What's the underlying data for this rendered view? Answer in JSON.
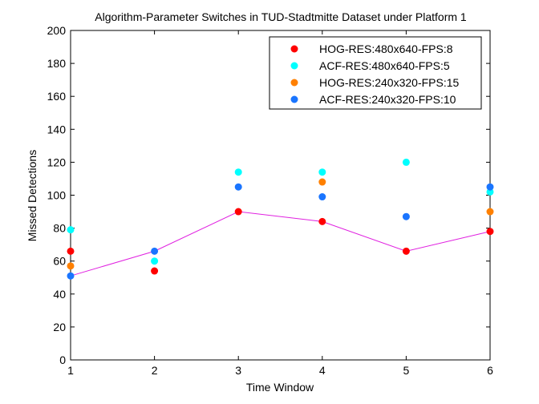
{
  "chart_data": {
    "type": "scatter",
    "title": "Algorithm-Parameter Switches in TUD-Stadtmitte Dataset under Platform 1",
    "xlabel": "Time Window",
    "ylabel": "Missed Detections",
    "xlim": [
      1,
      6
    ],
    "ylim": [
      0,
      200
    ],
    "xticks": [
      1,
      2,
      3,
      4,
      5,
      6
    ],
    "yticks": [
      0,
      20,
      40,
      60,
      80,
      100,
      120,
      140,
      160,
      180,
      200
    ],
    "grid": false,
    "legend_position": "top-right",
    "series": [
      {
        "name": "HOG-RES:480x640-FPS:8",
        "color": "#ff0000",
        "x": [
          1,
          2,
          3,
          4,
          5,
          6
        ],
        "y": [
          66,
          54,
          90,
          84,
          66,
          78
        ]
      },
      {
        "name": "ACF-RES:480x640-FPS:5",
        "color": "#00ffff",
        "x": [
          1,
          2,
          3,
          4,
          5,
          6
        ],
        "y": [
          79,
          60,
          114,
          114,
          120,
          102
        ]
      },
      {
        "name": "HOG-RES:240x320-FPS:15",
        "color": "#ff8000",
        "x": [
          1,
          4,
          6
        ],
        "y": [
          57,
          108,
          90
        ]
      },
      {
        "name": "ACF-RES:240x320-FPS:10",
        "color": "#1a75ff",
        "x": [
          1,
          2,
          3,
          4,
          5,
          6
        ],
        "y": [
          51,
          66,
          105,
          99,
          87,
          105
        ]
      }
    ],
    "switch_line": {
      "color": "#e020e0",
      "x": [
        1,
        2,
        3,
        4,
        5,
        6
      ],
      "y": [
        51,
        66,
        90,
        84,
        66,
        78
      ]
    }
  }
}
